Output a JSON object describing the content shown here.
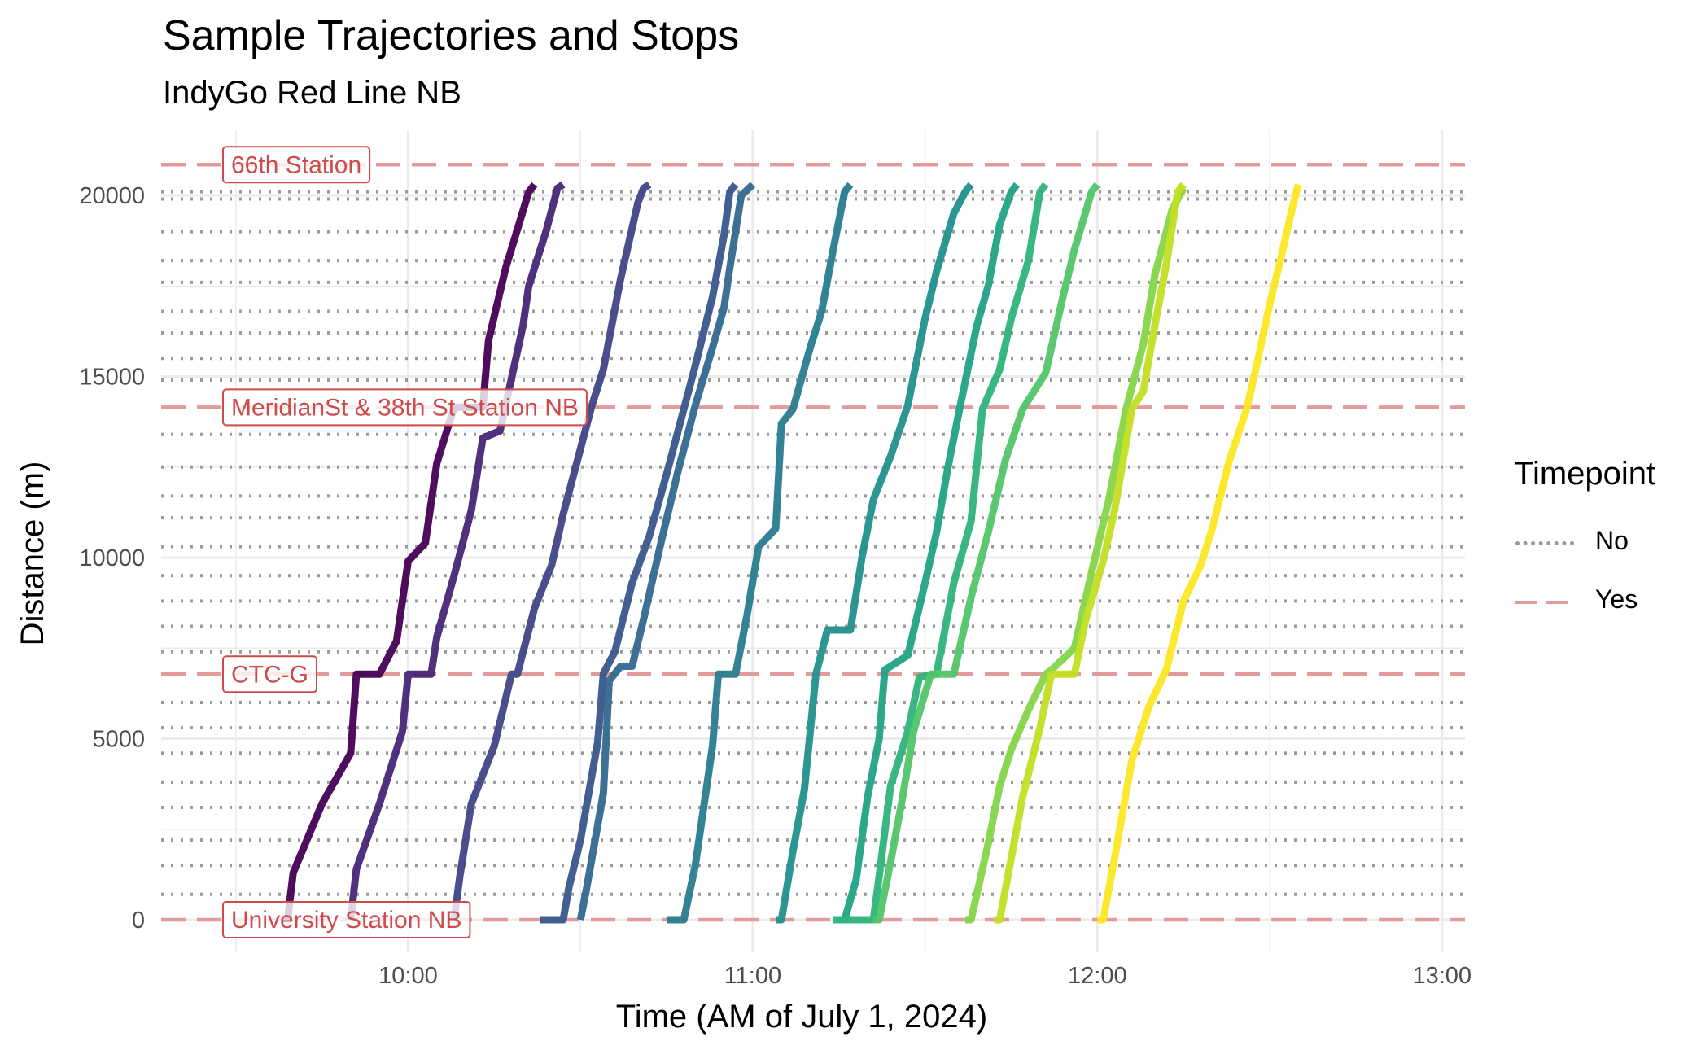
{
  "title": "Sample Trajectories and Stops",
  "subtitle": "IndyGo Red Line NB",
  "legend": {
    "title": "Timepoint",
    "items": [
      {
        "label": "No",
        "style": "dotted",
        "color": "#999999"
      },
      {
        "label": "Yes",
        "style": "dashed",
        "color": "#e39a9a"
      }
    ]
  },
  "colors": {
    "timepoint_line": "#e39a9a",
    "timepoint_text": "#cd4b4b",
    "stop_line": "#9a9a9a",
    "grid": "#ebebeb"
  },
  "chart_data": {
    "type": "line",
    "xlabel": "Time (AM of July 1, 2024)",
    "ylabel": "Distance (m)",
    "xlim": [
      "09:17",
      "13:04"
    ],
    "ylim": [
      -900,
      21800
    ],
    "x_ticks": [
      "10:00",
      "11:00",
      "12:00",
      "13:00"
    ],
    "y_ticks": [
      0,
      5000,
      10000,
      15000,
      20000
    ],
    "grid": true,
    "legend_position": "right",
    "timepoints": [
      {
        "name": "University Station NB",
        "distance": 0
      },
      {
        "name": "CTC-G",
        "distance": 6780
      },
      {
        "name": "MeridianSt & 38th St Station NB",
        "distance": 14150
      },
      {
        "name": "66th Station",
        "distance": 20850
      }
    ],
    "stops": [
      700,
      1500,
      2200,
      3100,
      3800,
      4600,
      5300,
      6000,
      7400,
      8100,
      8800,
      9500,
      10300,
      11100,
      11700,
      12500,
      13400,
      14900,
      15500,
      16200,
      16800,
      17600,
      18200,
      19000,
      19900,
      20100
    ],
    "series": [
      {
        "color": "#440154",
        "times": [
          "09:39",
          "09:40",
          "09:45",
          "09:50",
          "09:51",
          "09:55",
          "09:58",
          "10:00",
          "10:03",
          "10:05",
          "10:08",
          "10:13",
          "10:14",
          "10:17",
          "10:21",
          "10:22"
        ],
        "distance": [
          0,
          1300,
          3200,
          4600,
          6780,
          6780,
          7700,
          9900,
          10400,
          12600,
          14150,
          14150,
          16000,
          18000,
          20100,
          20300
        ]
      },
      {
        "color": "#482576",
        "times": [
          "09:50",
          "09:51",
          "09:55",
          "09:59",
          "10:00",
          "10:04",
          "10:05",
          "10:08",
          "10:11",
          "10:13",
          "10:16",
          "10:20",
          "10:21",
          "10:24",
          "10:26",
          "10:27"
        ],
        "distance": [
          0,
          1400,
          3200,
          5200,
          6780,
          6780,
          7800,
          9500,
          11300,
          13300,
          13500,
          16400,
          17500,
          19000,
          20200,
          20300
        ]
      },
      {
        "color": "#414487",
        "times": [
          "10:08",
          "10:09",
          "10:11",
          "10:15",
          "10:18",
          "10:19",
          "10:22",
          "10:25",
          "10:27",
          "10:30",
          "10:32",
          "10:34",
          "10:37",
          "10:40",
          "10:41",
          "10:42"
        ],
        "distance": [
          0,
          1200,
          3200,
          4800,
          6780,
          6780,
          8600,
          9800,
          11200,
          13000,
          14200,
          15200,
          17700,
          19800,
          20200,
          20300
        ]
      },
      {
        "color": "#39568c",
        "times": [
          "10:23",
          "10:27",
          "10:28",
          "10:30",
          "10:33",
          "10:34",
          "10:36",
          "10:39",
          "10:42",
          "10:45",
          "10:48",
          "10:50",
          "10:53",
          "10:55",
          "10:56",
          "10:57"
        ],
        "distance": [
          0,
          0,
          900,
          2200,
          4900,
          6800,
          7400,
          9300,
          10600,
          12300,
          14100,
          15300,
          17200,
          18900,
          20100,
          20300
        ]
      },
      {
        "color": "#31688e",
        "times": [
          "10:30",
          "10:31",
          "10:34",
          "10:35",
          "10:37",
          "10:39",
          "10:41",
          "10:44",
          "10:47",
          "10:50",
          "10:53",
          "10:55",
          "10:56",
          "10:58",
          "11:00"
        ],
        "distance": [
          0,
          800,
          3500,
          6600,
          7000,
          7000,
          8300,
          10400,
          12400,
          14200,
          15800,
          16900,
          18000,
          20000,
          20300
        ]
      },
      {
        "color": "#287c8e",
        "times": [
          "10:45",
          "10:48",
          "10:50",
          "10:53",
          "10:54",
          "10:57",
          "10:59",
          "11:01",
          "11:04",
          "11:05",
          "11:07",
          "11:10",
          "11:12",
          "11:14",
          "11:16",
          "11:17"
        ],
        "distance": [
          0,
          0,
          1500,
          4800,
          6780,
          6780,
          8400,
          10300,
          10800,
          13700,
          14100,
          15800,
          16800,
          18500,
          20100,
          20300
        ]
      },
      {
        "color": "#21908d",
        "times": [
          "11:04",
          "11:05",
          "11:07",
          "11:09",
          "11:11",
          "11:13",
          "11:17",
          "11:19",
          "11:21",
          "11:24",
          "11:27",
          "11:30",
          "11:32",
          "11:35",
          "11:37",
          "11:38"
        ],
        "distance": [
          0,
          0,
          1900,
          3600,
          6780,
          8000,
          8000,
          10000,
          11600,
          12800,
          14200,
          16600,
          17900,
          19500,
          20100,
          20300
        ]
      },
      {
        "color": "#20a386",
        "times": [
          "11:15",
          "11:16",
          "11:18",
          "11:20",
          "11:22",
          "11:23",
          "11:27",
          "11:30",
          "11:32",
          "11:34",
          "11:36",
          "11:39",
          "11:41",
          "11:43",
          "11:45",
          "11:46"
        ],
        "distance": [
          0,
          0,
          1100,
          3400,
          5000,
          6900,
          7300,
          9300,
          10700,
          12500,
          14100,
          16400,
          17500,
          19200,
          20100,
          20300
        ]
      },
      {
        "color": "#2eb37c",
        "times": [
          "11:14",
          "11:21",
          "11:22",
          "11:24",
          "11:27",
          "11:29",
          "11:32",
          "11:35",
          "11:38",
          "11:40",
          "11:43",
          "11:45",
          "11:48",
          "11:50",
          "11:51"
        ],
        "distance": [
          0,
          0,
          1200,
          3700,
          5200,
          6700,
          6780,
          9300,
          11000,
          14100,
          15200,
          16600,
          18200,
          20100,
          20300
        ]
      },
      {
        "color": "#52c569",
        "times": [
          "11:21",
          "11:22",
          "11:24",
          "11:26",
          "11:28",
          "11:31",
          "11:35",
          "11:38",
          "11:41",
          "11:44",
          "11:47",
          "11:51",
          "11:54",
          "11:56",
          "11:59",
          "12:00"
        ],
        "distance": [
          0,
          0,
          1600,
          3300,
          5200,
          6780,
          6780,
          8900,
          10700,
          12700,
          14100,
          15100,
          17200,
          18500,
          20100,
          20300
        ]
      },
      {
        "color": "#86d549",
        "times": [
          "11:37",
          "11:38",
          "11:41",
          "11:43",
          "11:45",
          "11:48",
          "11:51",
          "11:52",
          "11:56",
          "11:59",
          "12:02",
          "12:05",
          "12:08",
          "12:10",
          "12:13",
          "12:15"
        ],
        "distance": [
          0,
          0,
          2100,
          3700,
          4700,
          5800,
          6780,
          6900,
          7500,
          9600,
          11600,
          14100,
          15900,
          17800,
          19600,
          20200
        ]
      },
      {
        "color": "#c2df23",
        "times": [
          "11:42",
          "11:43",
          "11:45",
          "11:47",
          "11:50",
          "11:52",
          "11:56",
          "11:58",
          "12:01",
          "12:03",
          "12:06",
          "12:08",
          "12:10",
          "12:12",
          "12:14",
          "12:15"
        ],
        "distance": [
          0,
          0,
          1700,
          3400,
          5300,
          6780,
          6780,
          8300,
          9900,
          11300,
          14100,
          14600,
          16400,
          18100,
          20100,
          20300
        ]
      },
      {
        "color": "#fde725",
        "times": [
          "12:00",
          "12:01",
          "12:03",
          "12:06",
          "12:09",
          "12:12",
          "12:15",
          "12:18",
          "12:20",
          "12:23",
          "12:26",
          "12:28",
          "12:30",
          "12:32",
          "12:34",
          "12:35"
        ],
        "distance": [
          0,
          0,
          1700,
          4400,
          5900,
          6900,
          8800,
          9800,
          10800,
          12700,
          14100,
          15500,
          17000,
          18300,
          19700,
          20300
        ]
      }
    ]
  }
}
